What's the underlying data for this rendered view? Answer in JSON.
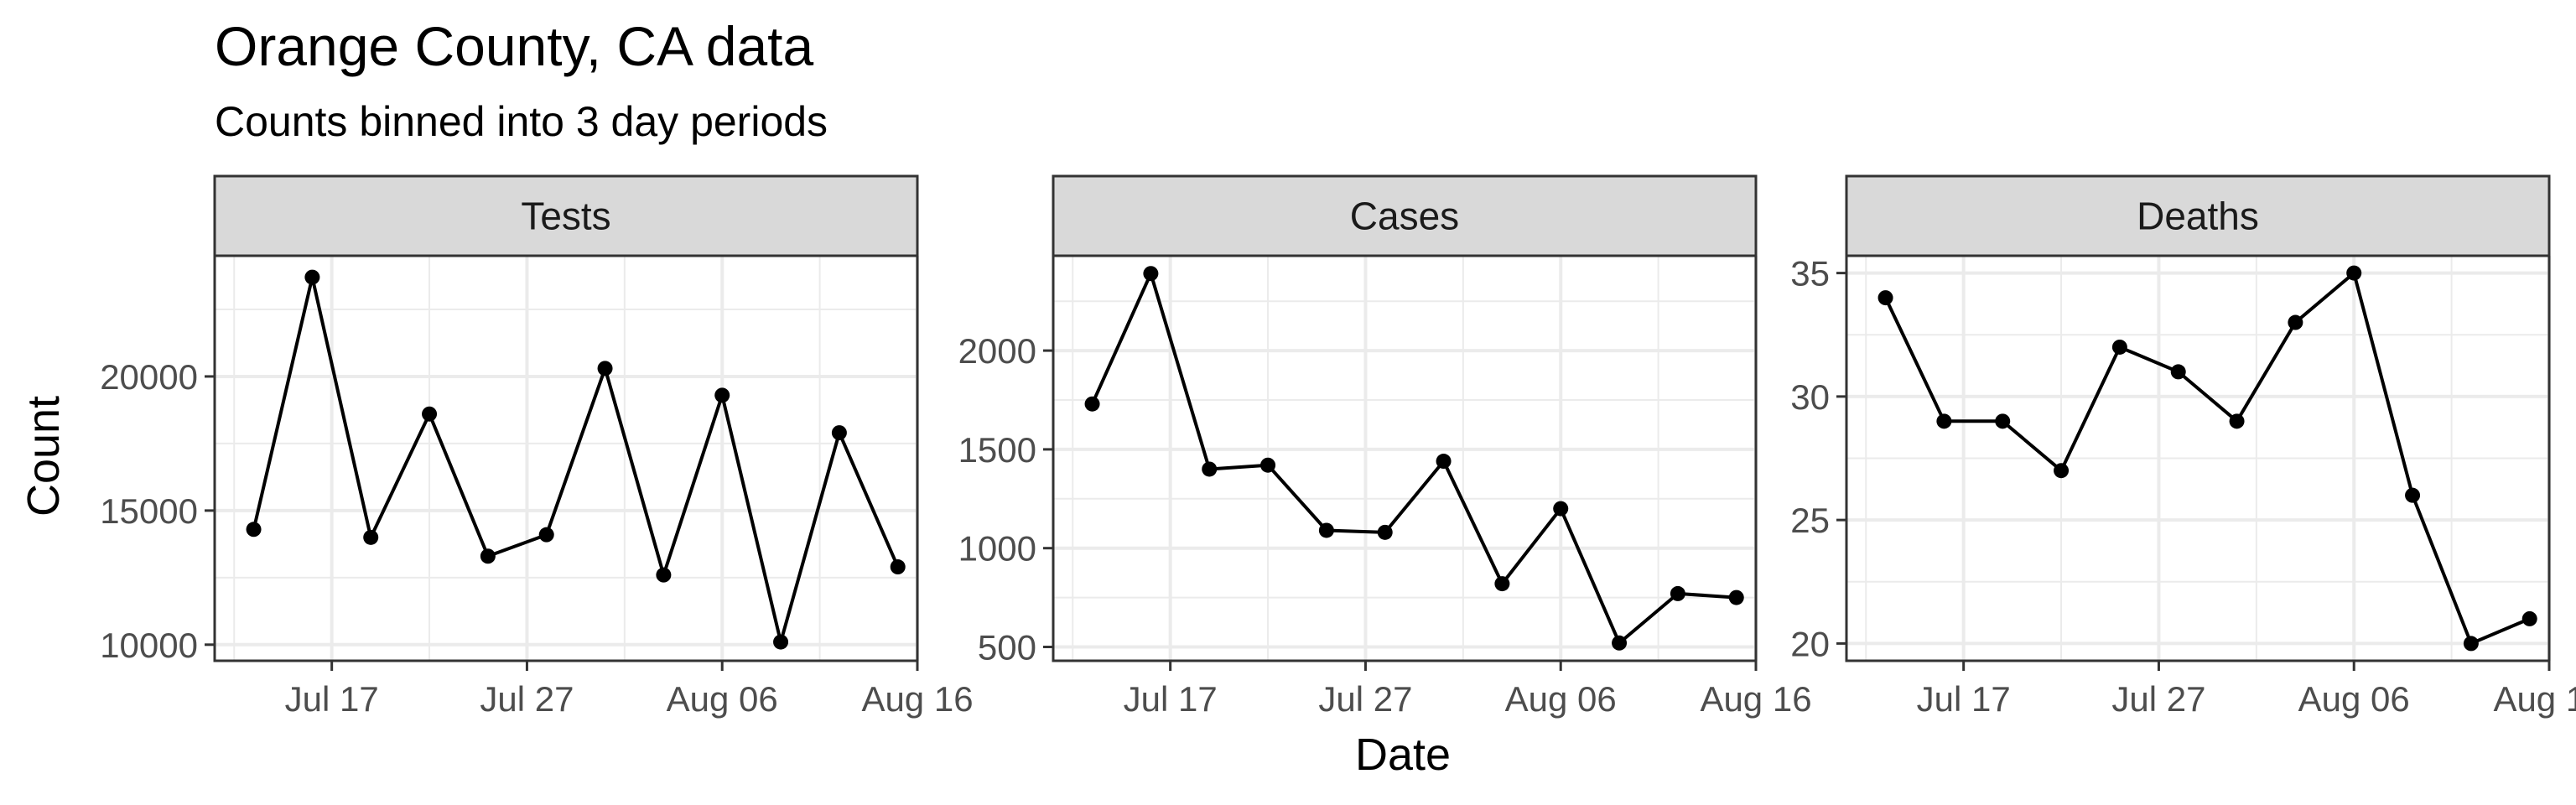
{
  "chart_data": {
    "type": "line",
    "title": "Orange County, CA data",
    "subtitle": "Counts binned into 3 day periods",
    "xlabel": "Date",
    "ylabel": "Count",
    "x": [
      "2020-07-13",
      "2020-07-16",
      "2020-07-19",
      "2020-07-22",
      "2020-07-25",
      "2020-07-28",
      "2020-07-31",
      "2020-08-03",
      "2020-08-06",
      "2020-08-09",
      "2020-08-12",
      "2020-08-15"
    ],
    "xticks": [
      "2020-07-17",
      "2020-07-27",
      "2020-08-06",
      "2020-08-16"
    ],
    "xtick_labels": [
      "Jul 17",
      "Jul 27",
      "Aug 06",
      "Aug 16"
    ],
    "xlim": [
      "2020-07-11",
      "2020-08-16"
    ],
    "grid": true,
    "legend": "none",
    "colors": {
      "line": "#000000",
      "panel_border": "#333333",
      "grid": "#ebebeb",
      "strip_fill": "#d9d9d9"
    },
    "panels": [
      {
        "name": "Tests",
        "values": [
          14300,
          23700,
          14000,
          18600,
          13300,
          14100,
          20300,
          12600,
          19300,
          10100,
          17900,
          12900
        ],
        "yticks": [
          10000,
          15000,
          20000
        ],
        "ytick_labels": [
          "10000",
          "15000",
          "20000"
        ],
        "ylim": [
          9400,
          24500
        ]
      },
      {
        "name": "Cases",
        "values": [
          1730,
          2390,
          1400,
          1420,
          1090,
          1080,
          1440,
          820,
          1200,
          520,
          770,
          750
        ],
        "yticks": [
          500,
          1000,
          1500,
          2000
        ],
        "ytick_labels": [
          "500",
          "1000",
          "1500",
          "2000"
        ],
        "ylim": [
          430,
          2480
        ]
      },
      {
        "name": "Deaths",
        "values": [
          34,
          29,
          29,
          27,
          32,
          31,
          29,
          33,
          35,
          26,
          20,
          21
        ],
        "yticks": [
          20,
          25,
          30,
          35
        ],
        "ytick_labels": [
          "20",
          "25",
          "30",
          "35"
        ],
        "ylim": [
          19.3,
          35.7
        ]
      }
    ]
  }
}
